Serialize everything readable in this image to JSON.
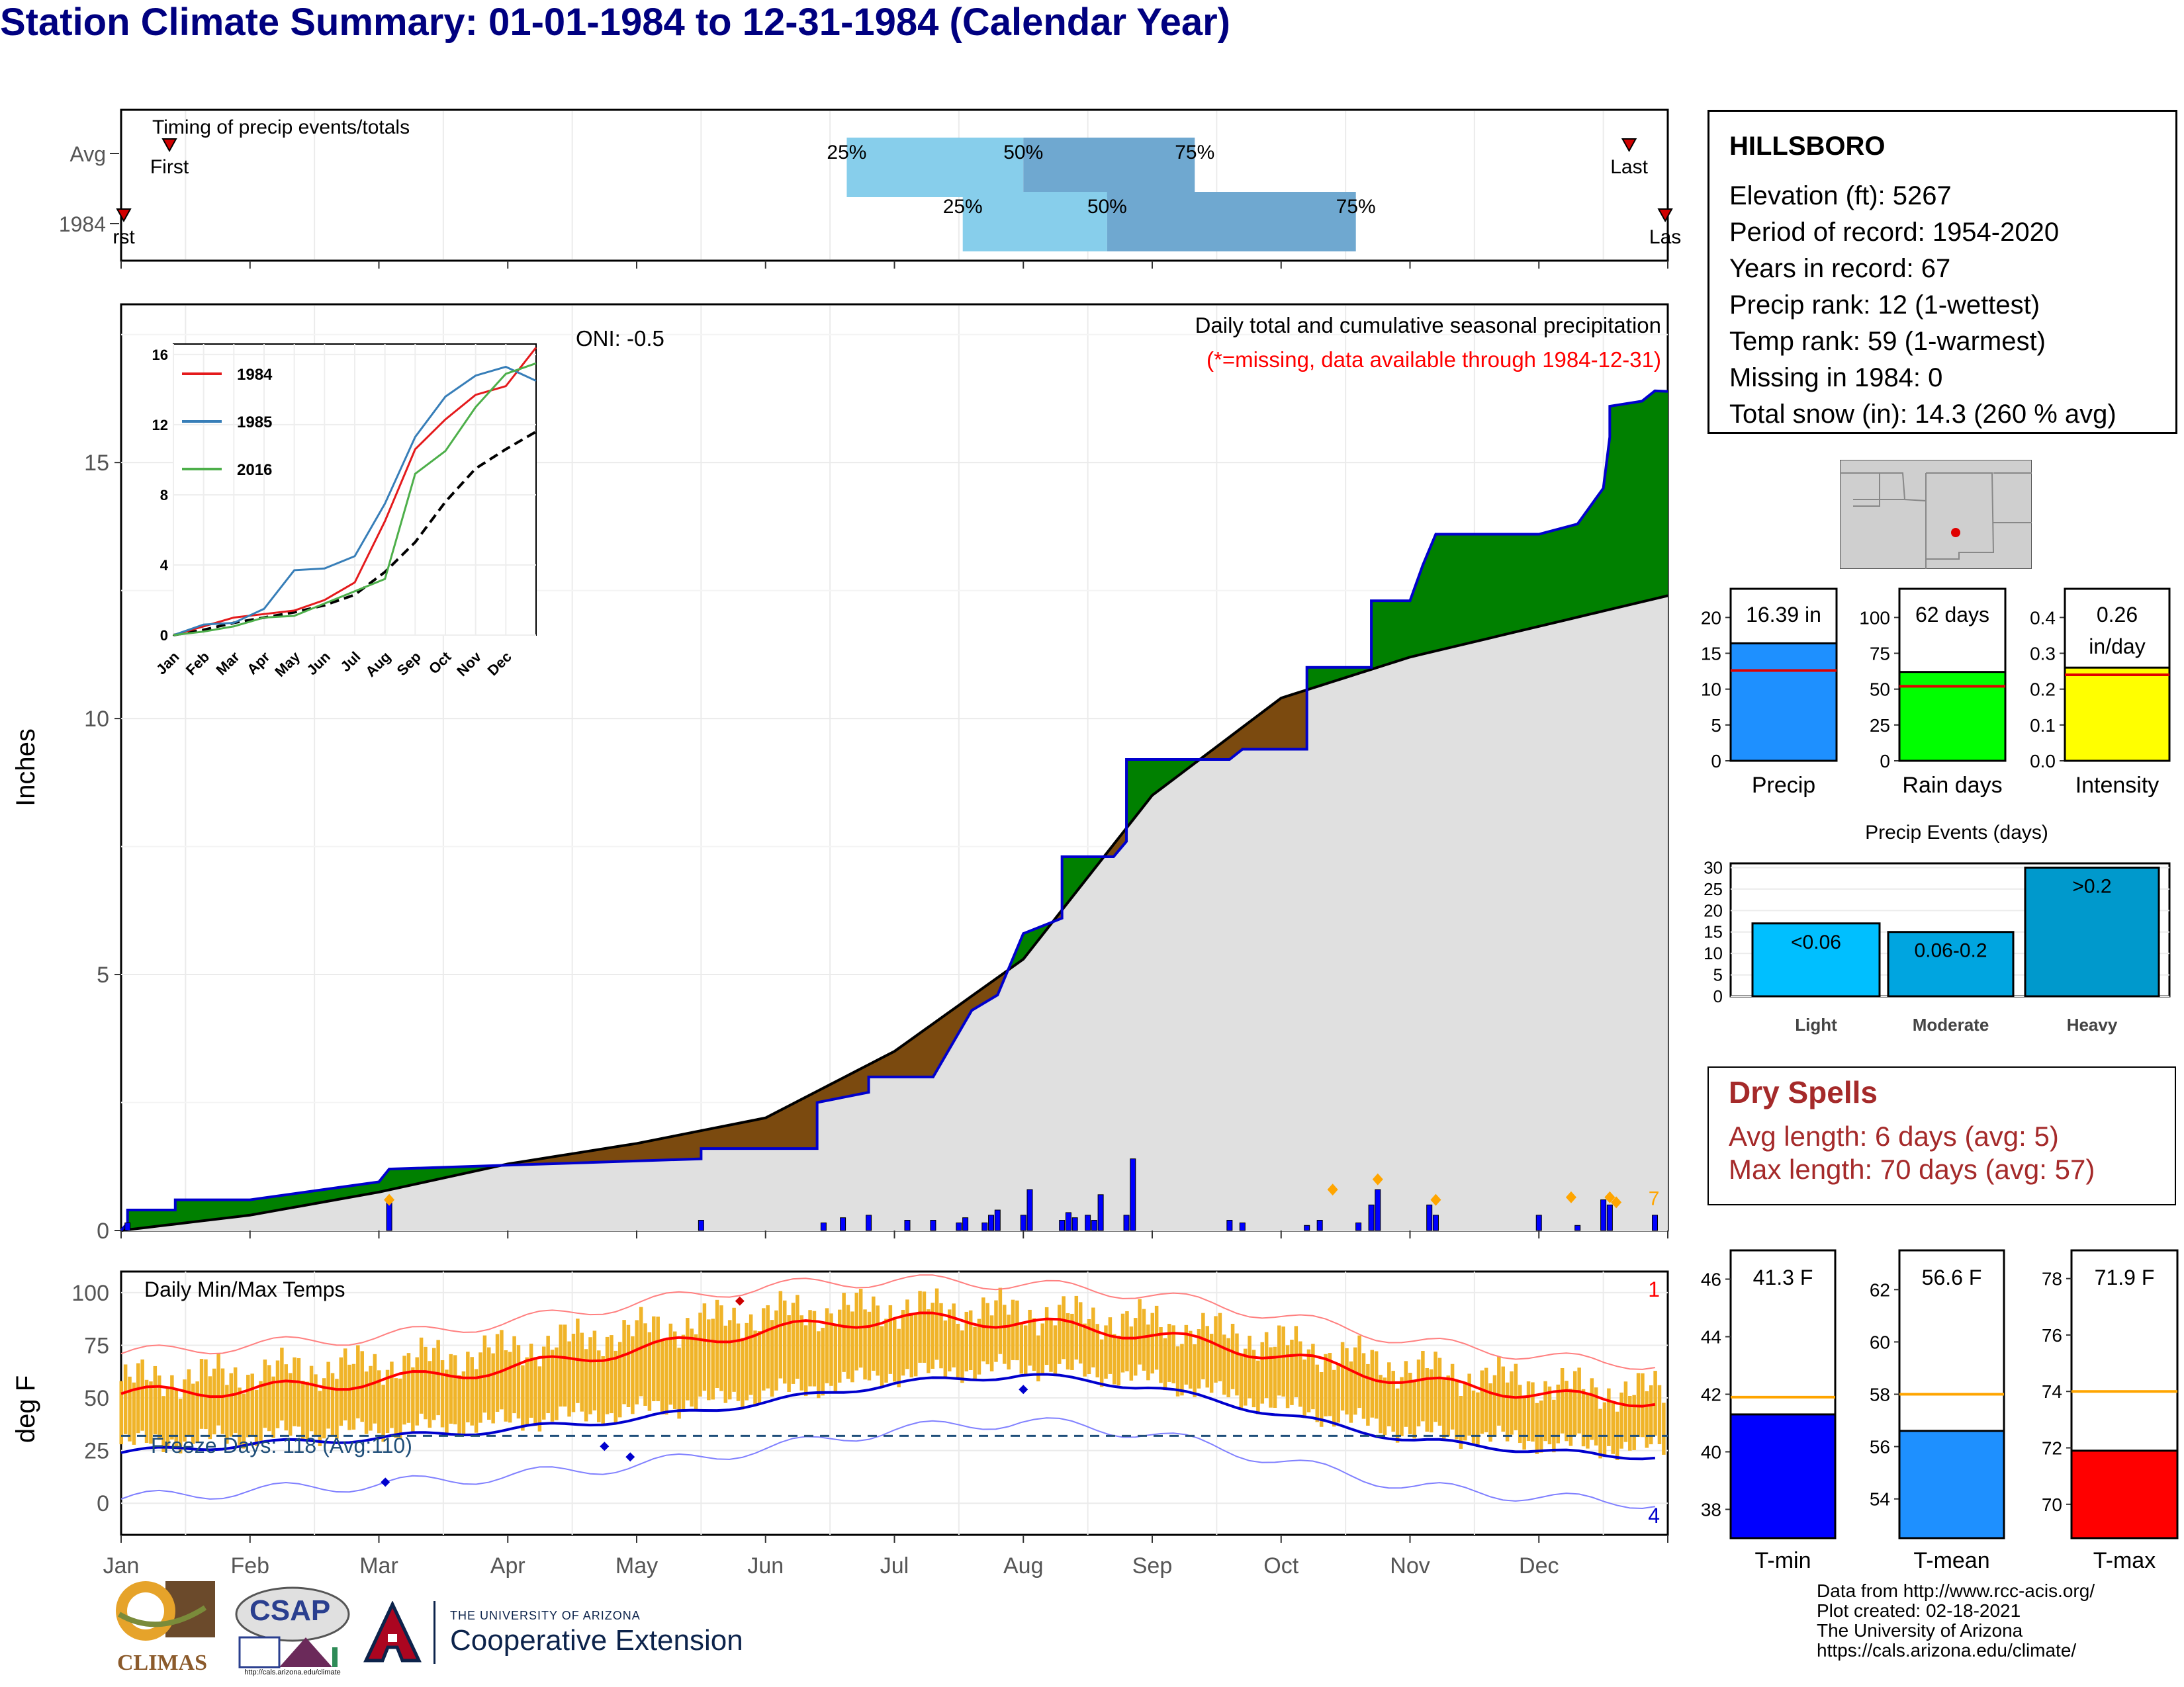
{
  "title": "Station Climate Summary: 01-01-1984 to 12-31-1984 (Calendar Year)",
  "colors": {
    "title": "#000080",
    "q_light": "#87ceeb",
    "q_dark": "#6fa8d0",
    "above": "#008000",
    "below": "#7b4a0f",
    "climo": "#e0e0e0",
    "line": "#0000cd",
    "temp_bar": "#f0b429",
    "tmax": "#ff0000",
    "tmin": "#0000cd",
    "dry": "#a52a2a",
    "missing": "#ff0000"
  },
  "timing": {
    "label": "Timing of precip events/totals",
    "rows": [
      "Avg",
      "1984"
    ],
    "avg": {
      "first_label": "First",
      "last_label": "Last",
      "q25": "25%",
      "q50": "50%",
      "q75": "75%",
      "first": 0.375,
      "last": 11.7,
      "p25": 5.63,
      "p50": 7.0,
      "p75": 8.33
    },
    "yr": {
      "first_label": "rst",
      "last_label": "Las",
      "q25": "25%",
      "q50": "50%",
      "q75": "75%",
      "first": 0.0,
      "last": 11.98,
      "p25": 6.53,
      "p50": 7.65,
      "p75": 9.58
    }
  },
  "precip": {
    "ylabel": "Inches",
    "title": "Daily total and cumulative seasonal precipitation",
    "missing_note": "(*=missing, data available through 1984-12-31)",
    "oni": "ONI: -0.5",
    "yticks": [
      "0",
      "5",
      "10",
      "15"
    ],
    "count_label": "7"
  },
  "inset": {
    "yticks": [
      "0",
      "4",
      "8",
      "12",
      "16"
    ],
    "months": [
      "Jan",
      "Feb",
      "Mar",
      "Apr",
      "May",
      "Jun",
      "Jul",
      "Aug",
      "Sep",
      "Oct",
      "Nov",
      "Dec"
    ],
    "legend": [
      "1984",
      "1985",
      "2016"
    ]
  },
  "temps": {
    "ylabel": "deg F",
    "title": "Daily Min/Max Temps",
    "freeze": "Freeze Days: 118 (Avg:110)",
    "yticks": [
      "0",
      "25",
      "50",
      "75",
      "100"
    ],
    "count_max": "1",
    "count_min": "4"
  },
  "months": [
    "Jan",
    "Feb",
    "Mar",
    "Apr",
    "May",
    "Jun",
    "Jul",
    "Aug",
    "Sep",
    "Oct",
    "Nov",
    "Dec"
  ],
  "station": {
    "name": "HILLSBORO",
    "lines": [
      "Elevation (ft): 5267",
      "Period of record: 1954-2020",
      "Years in record: 67",
      "Precip rank: 12 (1-wettest)",
      "Temp rank: 59 (1-warmest)",
      "Missing in 1984: 0",
      "Total snow (in): 14.3 (260 % avg)"
    ]
  },
  "summary_bars": [
    {
      "label": "Precip",
      "value_text": "16.39 in",
      "value": 16.39,
      "avg": 12.6,
      "ymax": 24,
      "ticks": [
        "0",
        "5",
        "10",
        "15",
        "20"
      ],
      "color": "#1e90ff"
    },
    {
      "label": "Rain days",
      "value_text": "62 days",
      "value": 62,
      "avg": 52,
      "ymax": 120,
      "ticks": [
        "0",
        "25",
        "50",
        "75",
        "100"
      ],
      "color": "#00ff00"
    },
    {
      "label": "Intensity",
      "value_text": "0.26 in/day",
      "value": 0.26,
      "avg": 0.24,
      "ymax": 0.48,
      "ticks": [
        "0.0",
        "0.1",
        "0.2",
        "0.3",
        "0.4"
      ],
      "color": "#ffff00"
    }
  ],
  "events": {
    "title": "Precip Events (days)",
    "ticks": [
      "0",
      "5",
      "10",
      "15",
      "20",
      "25",
      "30"
    ],
    "categories": [
      "Light",
      "Moderate",
      "Heavy"
    ],
    "labels": [
      "<0.06",
      "0.06-0.2",
      ">0.2"
    ],
    "values": [
      17,
      15,
      30
    ],
    "colors": [
      "#00bfff",
      "#00a5e0",
      "#0099cc"
    ]
  },
  "dry": {
    "title": "Dry Spells",
    "avg": "Avg length: 6 days (avg: 5)",
    "max": "Max length: 70 days (avg: 57)"
  },
  "temp_bars": [
    {
      "label": "T-min",
      "value_text": "41.3 F",
      "value": 41.3,
      "avg": 41.9,
      "ymin": 37,
      "ymax": 47,
      "ticks": [
        "38",
        "40",
        "42",
        "44",
        "46"
      ],
      "color": "#0000ff"
    },
    {
      "label": "T-mean",
      "value_text": "56.6 F",
      "value": 56.6,
      "avg": 58,
      "ymin": 52.5,
      "ymax": 63.5,
      "ticks": [
        "54",
        "56",
        "58",
        "60",
        "62"
      ],
      "color": "#1e90ff"
    },
    {
      "label": "T-max",
      "value_text": "71.9 F",
      "value": 71.9,
      "avg": 74,
      "ymin": 68.8,
      "ymax": 79,
      "ticks": [
        "70",
        "72",
        "74",
        "76",
        "78"
      ],
      "color": "#ff0000"
    }
  ],
  "credits": [
    "Data from http://www.rcc-acis.org/",
    "Plot created: 02-18-2021",
    "The University of Arizona",
    "https://cals.arizona.edu/climate/"
  ],
  "logos": {
    "climas": "CLIMAS",
    "csap": "CSAP",
    "csap_url": "http://cals.arizona.edu/climate",
    "ua_small": "THE UNIVERSITY OF ARIZONA",
    "ua_big": "Cooperative Extension"
  },
  "chart_data": [
    {
      "type": "area",
      "title": "Daily total and cumulative seasonal precipitation",
      "ylabel": "Inches",
      "ylim": [
        0,
        18
      ],
      "x": [
        "Jan",
        "Feb",
        "Mar",
        "Apr",
        "May",
        "Jun",
        "Jul",
        "Aug",
        "Sep",
        "Oct",
        "Nov",
        "Dec",
        "Dec 31"
      ],
      "series": [
        {
          "name": "1984",
          "values": [
            0.0,
            0.5,
            1.0,
            1.2,
            1.4,
            1.6,
            2.9,
            7.3,
            9.2,
            12.3,
            13.6,
            13.7,
            16.39
          ]
        },
        {
          "name": "",
          "values": [
            0.0,
            0.3,
            0.75,
            1.3,
            1.7,
            2.2,
            3.5,
            5.3,
            8.5,
            10.4,
            11.2,
            11.8,
            12.4
          ]
        }
      ]
    },
    {
      "type": "line",
      "ylabel": "deg F",
      "ylim": [
        -15,
        110
      ],
      "title": "Daily Min/Max Temps",
      "x": [
        "Jan",
        "Feb",
        "Mar",
        "Apr",
        "May",
        "Jun",
        "Jul",
        "Aug",
        "Sep",
        "Oct",
        "Nov",
        "Dec"
      ],
      "series": [
        {
          "name": "",
          "values": [
            58,
            62,
            66,
            73,
            82,
            90,
            93,
            91,
            86,
            76,
            64,
            57
          ]
        },
        {
          "name": "",
          "values": [
            24,
            28,
            31,
            35,
            40,
            48,
            57,
            61,
            55,
            42,
            30,
            25
          ]
        },
        {
          "name": "",
          "values": [
            52,
            54,
            58,
            64,
            73,
            82,
            88,
            86,
            80,
            70,
            58,
            52
          ]
        }
      ]
    }
  ]
}
